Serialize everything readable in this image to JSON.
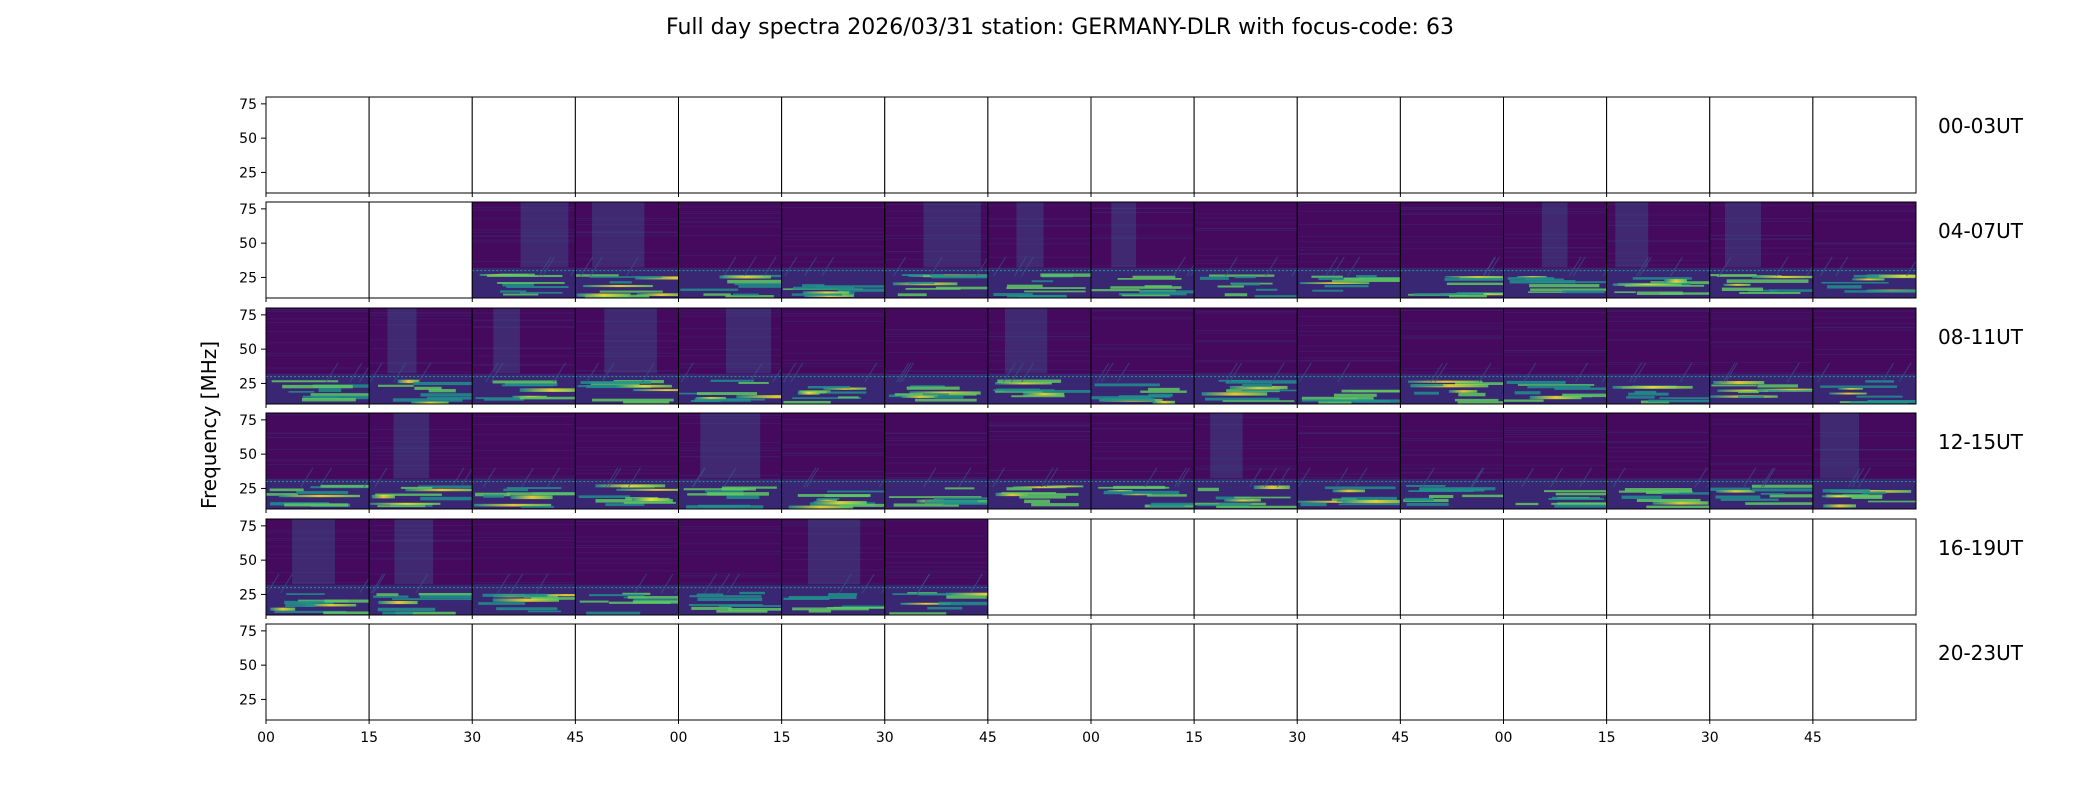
{
  "chart_data": {
    "type": "heatmap",
    "title": "Full day spectra 2026/03/31 station: GERMANY-DLR with focus-code: 63",
    "ylabel": "Frequency [MHz]",
    "xlabel": "",
    "ylim": [
      10,
      80
    ],
    "y_ticks": [
      "75",
      "50",
      "25"
    ],
    "y_tick_values": [
      75,
      50,
      25
    ],
    "x_tick_labels": [
      "00",
      "15",
      "30",
      "45",
      "00",
      "15",
      "30",
      "45",
      "00",
      "15",
      "30",
      "45",
      "00",
      "15",
      "30",
      "45"
    ],
    "panels_per_row": 16,
    "rows": [
      {
        "label": "00-03UT",
        "filled": []
      },
      {
        "label": "04-07UT",
        "filled": [
          2,
          3,
          4,
          5,
          6,
          7,
          8,
          9,
          10,
          11,
          12,
          13,
          14,
          15
        ]
      },
      {
        "label": "08-11UT",
        "filled": [
          0,
          1,
          2,
          3,
          4,
          5,
          6,
          7,
          8,
          9,
          10,
          11,
          12,
          13,
          14,
          15
        ]
      },
      {
        "label": "12-15UT",
        "filled": [
          0,
          1,
          2,
          3,
          4,
          5,
          6,
          7,
          8,
          9,
          10,
          11,
          12,
          13,
          14,
          15
        ]
      },
      {
        "label": "16-19UT",
        "filled": [
          0,
          1,
          2,
          3,
          4,
          5,
          6
        ]
      },
      {
        "label": "20-23UT",
        "filled": []
      }
    ],
    "colormap": [
      "#440154",
      "#3b528b",
      "#21918c",
      "#5ec962",
      "#fde725"
    ],
    "background_color": "#45095e"
  }
}
